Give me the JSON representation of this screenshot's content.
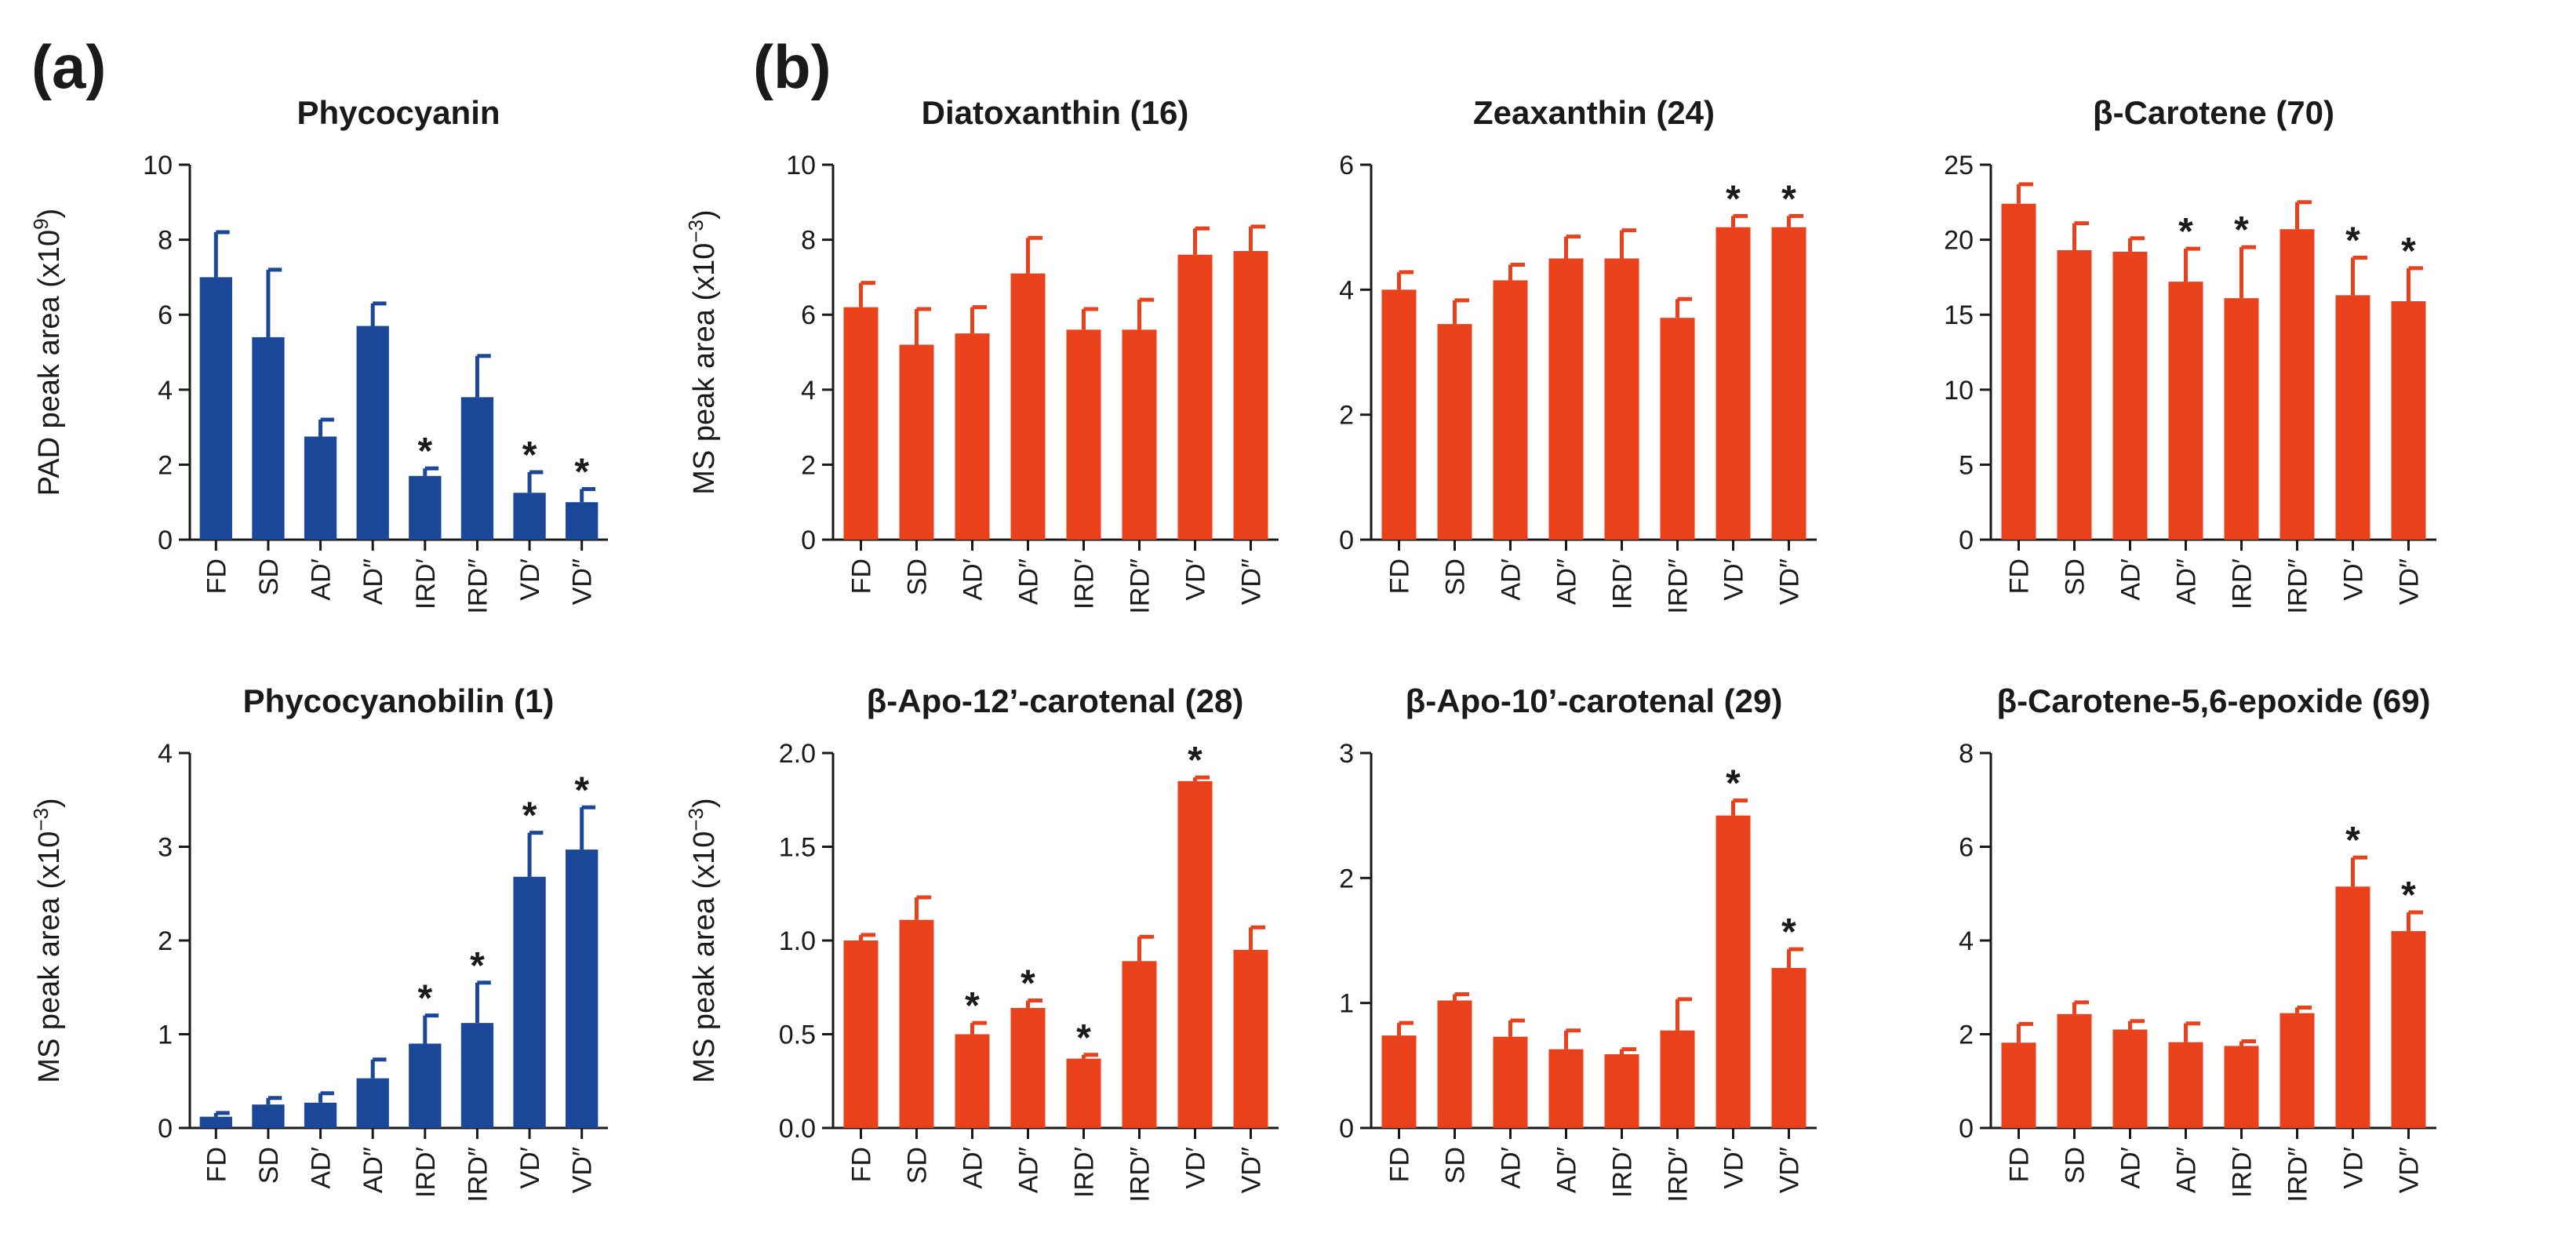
{
  "panel_labels": [
    "(a)",
    "(b)"
  ],
  "colors": {
    "blue": "#1b4798",
    "orange": "#e8411c",
    "axis": "#1a1a1a"
  },
  "chart_data": [
    {
      "type": "bar",
      "panel": "(a)",
      "title": "Phycocyanin",
      "ylabel": "PAD peak area (x10",
      "ylabel_exp": "9",
      "ylabel_tail": ")",
      "categories": [
        "FD",
        "SD",
        "AD′",
        "AD″",
        "IRD′",
        "IRD″",
        "VD′",
        "VD″"
      ],
      "values": [
        7.0,
        5.4,
        2.75,
        5.7,
        1.7,
        3.8,
        1.25,
        1.0
      ],
      "errors": [
        1.2,
        1.8,
        0.45,
        0.6,
        0.2,
        1.1,
        0.55,
        0.35
      ],
      "significant": [
        false,
        false,
        false,
        false,
        true,
        false,
        true,
        true
      ],
      "star_label": "*",
      "ylim": [
        0,
        10
      ],
      "yticks": [
        "0",
        "2",
        "4",
        "6",
        "8",
        "10"
      ],
      "color": "#1b4798"
    },
    {
      "type": "bar",
      "panel": "(b)",
      "title": "Diatoxanthin (16)",
      "ylabel": "MS peak area  (x10",
      "ylabel_exp": "−3",
      "ylabel_tail": ")",
      "categories": [
        "FD",
        "SD",
        "AD′",
        "AD″",
        "IRD′",
        "IRD″",
        "VD′",
        "VD″"
      ],
      "values": [
        6.2,
        5.2,
        5.5,
        7.1,
        5.6,
        5.6,
        7.6,
        7.7
      ],
      "errors": [
        0.65,
        0.95,
        0.7,
        0.95,
        0.55,
        0.8,
        0.7,
        0.65
      ],
      "significant": [
        false,
        false,
        false,
        false,
        false,
        false,
        false,
        false
      ],
      "star_label": "*",
      "ylim": [
        0,
        10
      ],
      "yticks": [
        "0",
        "2",
        "4",
        "6",
        "8",
        "10"
      ],
      "color": "#e8411c"
    },
    {
      "type": "bar",
      "title": "Zeaxanthin (24)",
      "categories": [
        "FD",
        "SD",
        "AD′",
        "AD″",
        "IRD′",
        "IRD″",
        "VD′",
        "VD″"
      ],
      "values": [
        4.0,
        3.45,
        4.15,
        4.5,
        4.5,
        3.55,
        5.0,
        5.0
      ],
      "errors": [
        0.28,
        0.38,
        0.25,
        0.35,
        0.45,
        0.3,
        0.18,
        0.18
      ],
      "significant": [
        false,
        false,
        false,
        false,
        false,
        false,
        true,
        true
      ],
      "star_label": "*",
      "ylim": [
        0,
        6
      ],
      "yticks": [
        "0",
        "2",
        "4",
        "6"
      ],
      "color": "#e8411c"
    },
    {
      "type": "bar",
      "title": "β-Carotene (70)",
      "categories": [
        "FD",
        "SD",
        "AD′",
        "AD″",
        "IRD′",
        "IRD″",
        "VD′",
        "VD″"
      ],
      "values": [
        22.4,
        19.3,
        19.2,
        17.2,
        16.1,
        20.7,
        16.3,
        15.9
      ],
      "errors": [
        1.3,
        1.8,
        0.9,
        2.2,
        3.4,
        1.8,
        2.5,
        2.2
      ],
      "significant": [
        false,
        false,
        false,
        true,
        true,
        false,
        true,
        true
      ],
      "star_label": "*",
      "ylim": [
        0,
        25
      ],
      "yticks": [
        "0",
        "5",
        "10",
        "15",
        "20",
        "25"
      ],
      "color": "#e8411c"
    },
    {
      "type": "bar",
      "title": "Phycocyanobilin (1)",
      "ylabel": "MS peak area  (x10",
      "ylabel_exp": "−3",
      "ylabel_tail": ")",
      "categories": [
        "FD",
        "SD",
        "AD′",
        "AD″",
        "IRD′",
        "IRD″",
        "VD′",
        "VD″"
      ],
      "values": [
        0.12,
        0.25,
        0.27,
        0.53,
        0.9,
        1.12,
        2.68,
        2.97
      ],
      "errors": [
        0.04,
        0.07,
        0.1,
        0.2,
        0.3,
        0.43,
        0.47,
        0.45
      ],
      "significant": [
        false,
        false,
        false,
        false,
        true,
        true,
        true,
        true
      ],
      "star_label": "*",
      "ylim": [
        0,
        4
      ],
      "yticks": [
        "0",
        "1",
        "2",
        "3",
        "4"
      ],
      "color": "#1b4798"
    },
    {
      "type": "bar",
      "title": "β-Apo-12’-carotenal (28)",
      "ylabel": "MS peak area  (x10",
      "ylabel_exp": "−3",
      "ylabel_tail": ")",
      "categories": [
        "FD",
        "SD",
        "AD′",
        "AD″",
        "IRD′",
        "IRD″",
        "VD′",
        "VD″"
      ],
      "values": [
        1.0,
        1.11,
        0.5,
        0.64,
        0.37,
        0.89,
        1.85,
        0.95
      ],
      "errors": [
        0.03,
        0.12,
        0.06,
        0.04,
        0.02,
        0.13,
        0.02,
        0.12
      ],
      "significant": [
        false,
        false,
        true,
        true,
        true,
        false,
        true,
        false
      ],
      "star_label": "*",
      "ylim": [
        0,
        2
      ],
      "yticks": [
        "0.0",
        "0.5",
        "1.0",
        "1.5",
        "2.0"
      ],
      "color": "#e8411c"
    },
    {
      "type": "bar",
      "title": "β-Apo-10’-carotenal (29)",
      "categories": [
        "FD",
        "SD",
        "AD′",
        "AD″",
        "IRD′",
        "IRD″",
        "VD′",
        "VD″"
      ],
      "values": [
        0.74,
        1.02,
        0.73,
        0.63,
        0.59,
        0.78,
        2.5,
        1.28
      ],
      "errors": [
        0.1,
        0.05,
        0.13,
        0.15,
        0.04,
        0.25,
        0.12,
        0.15
      ],
      "significant": [
        false,
        false,
        false,
        false,
        false,
        false,
        true,
        true
      ],
      "star_label": "*",
      "ylim": [
        0,
        3
      ],
      "yticks": [
        "0",
        "1",
        "2",
        "3"
      ],
      "color": "#e8411c"
    },
    {
      "type": "bar",
      "title": "β-Carotene-5,6-epoxide (69)",
      "categories": [
        "FD",
        "SD",
        "AD′",
        "AD″",
        "IRD′",
        "IRD″",
        "VD′",
        "VD″"
      ],
      "values": [
        1.82,
        2.43,
        2.1,
        1.83,
        1.75,
        2.45,
        5.15,
        4.2
      ],
      "errors": [
        0.4,
        0.25,
        0.18,
        0.4,
        0.1,
        0.12,
        0.62,
        0.4
      ],
      "significant": [
        false,
        false,
        false,
        false,
        false,
        false,
        true,
        true
      ],
      "star_label": "*",
      "ylim": [
        0,
        8
      ],
      "yticks": [
        "0",
        "2",
        "4",
        "6",
        "8"
      ],
      "color": "#e8411c"
    }
  ]
}
